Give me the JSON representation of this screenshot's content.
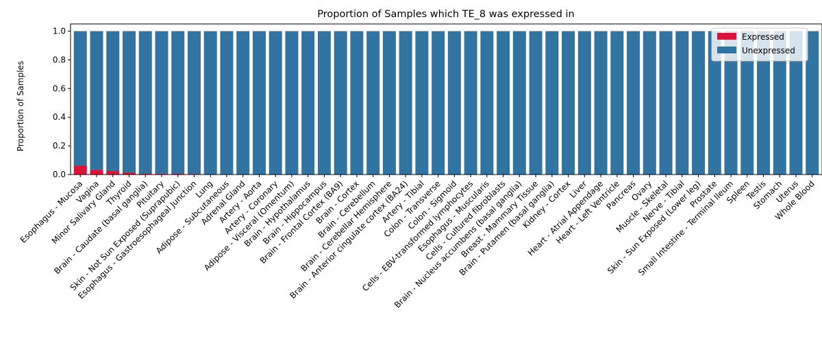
{
  "chart_data": {
    "type": "bar",
    "stacked": true,
    "title": "Proportion of Samples which TE_8 was expressed in",
    "xlabel": "",
    "ylabel": "Proportion of Samples",
    "ylim": [
      0,
      1.05
    ],
    "yticks": [
      "0.0",
      "0.2",
      "0.4",
      "0.6",
      "0.8",
      "1.0"
    ],
    "legend_position": "top-right",
    "grid": false,
    "categories": [
      "Esophagus - Mucosa",
      "Vagina",
      "Minor Salivary Gland",
      "Thyroid",
      "Brain - Caudate (basal ganglia)",
      "Pituitary",
      "Skin - Not Sun Exposed (Suprapubic)",
      "Esophagus - Gastroesophageal Junction",
      "Lung",
      "Adipose - Subcutaneous",
      "Adrenal Gland",
      "Artery - Aorta",
      "Artery - Coronary",
      "Adipose - Visceral (Omentum)",
      "Brain - Hypothalamus",
      "Brain - Hippocampus",
      "Brain - Frontal Cortex (BA9)",
      "Brain - Cortex",
      "Brain - Cerebellum",
      "Brain - Cerebellar Hemisphere",
      "Brain - Anterior cingulate cortex (BA24)",
      "Artery - Tibial",
      "Colon - Transverse",
      "Colon - Sigmoid",
      "Cells - EBV-transformed lymphocytes",
      "Esophagus - Muscularis",
      "Cells - Cultured fibroblasts",
      "Brain - Nucleus accumbens (basal ganglia)",
      "Breast - Mammary Tissue",
      "Brain - Putamen (basal ganglia)",
      "Kidney - Cortex",
      "Liver",
      "Heart - Atrial Appendage",
      "Heart - Left Ventricle",
      "Pancreas",
      "Ovary",
      "Muscle - Skeletal",
      "Nerve - Tibial",
      "Skin - Sun Exposed (Lower leg)",
      "Prostate",
      "Small Intestine - Terminal Ileum",
      "Spleen",
      "Testis",
      "Stomach",
      "Uterus",
      "Whole Blood"
    ],
    "series": [
      {
        "name": "Expressed",
        "color": "#dc143c",
        "values": [
          0.065,
          0.033,
          0.028,
          0.014,
          0.007,
          0.006,
          0.005,
          0.004,
          0,
          0,
          0,
          0,
          0,
          0,
          0,
          0,
          0,
          0,
          0,
          0,
          0,
          0,
          0,
          0,
          0,
          0,
          0,
          0,
          0,
          0,
          0,
          0,
          0,
          0,
          0,
          0,
          0,
          0,
          0,
          0,
          0,
          0,
          0,
          0,
          0,
          0
        ]
      },
      {
        "name": "Unexpressed",
        "color": "#3274a1",
        "values": [
          0.935,
          0.967,
          0.972,
          0.986,
          0.993,
          0.994,
          0.995,
          0.996,
          1,
          1,
          1,
          1,
          1,
          1,
          1,
          1,
          1,
          1,
          1,
          1,
          1,
          1,
          1,
          1,
          1,
          1,
          1,
          1,
          1,
          1,
          1,
          1,
          1,
          1,
          1,
          1,
          1,
          1,
          1,
          1,
          1,
          1,
          1,
          1,
          1,
          1
        ]
      }
    ]
  }
}
